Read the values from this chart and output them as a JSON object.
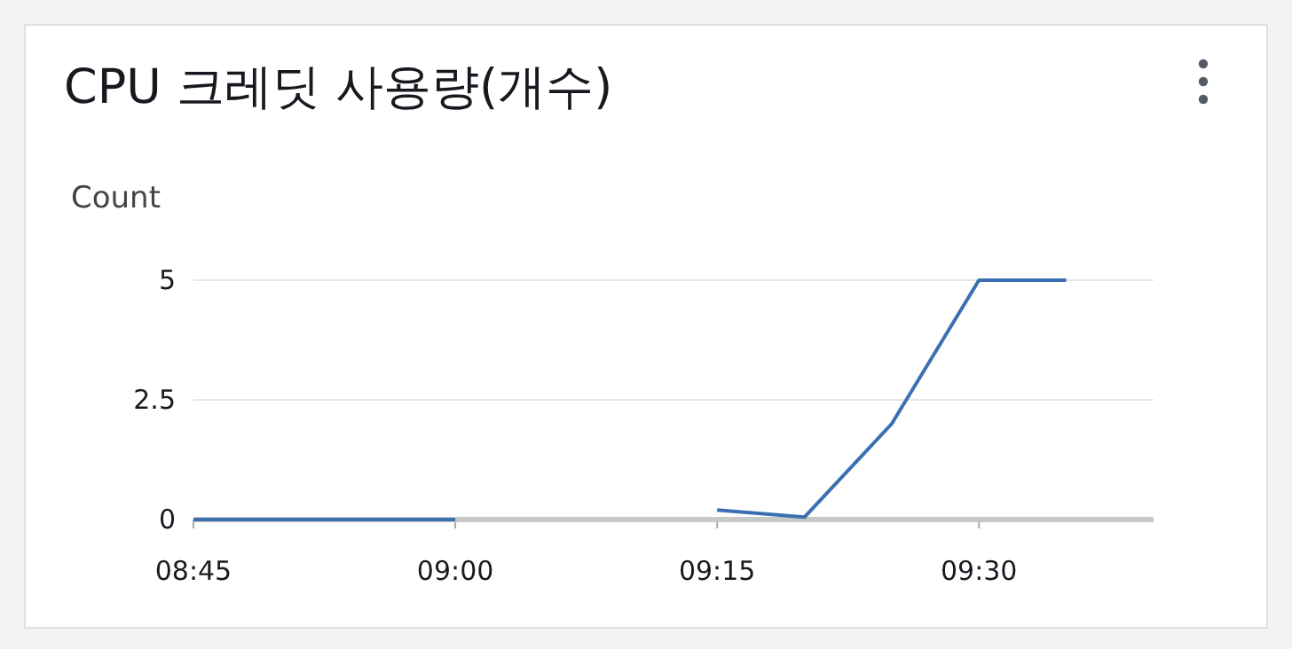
{
  "chart_data": {
    "type": "line",
    "title": "CPU 크레딧 사용량(개수)",
    "ylabel": "Count",
    "series": [
      {
        "color": "#3a70b0",
        "x": [
          8.75,
          8.8333,
          8.9167,
          9.0
        ],
        "values": [
          0,
          0,
          0,
          0
        ]
      },
      {
        "color": "#3a70b0",
        "x": [
          9.25,
          9.3333,
          9.4167,
          9.5,
          9.5833
        ],
        "values": [
          0.2,
          0.05,
          2,
          5,
          5
        ]
      }
    ],
    "xlim": [
      8.75,
      9.6667
    ],
    "xticks": [
      {
        "value": 8.75,
        "label": "08:45"
      },
      {
        "value": 9.0,
        "label": "09:00"
      },
      {
        "value": 9.25,
        "label": "09:15"
      },
      {
        "value": 9.5,
        "label": "09:30"
      }
    ],
    "ylim": [
      0,
      5
    ],
    "yticks": [
      0,
      2.5,
      5
    ],
    "grid": "y",
    "marker": "none",
    "line_style": "solid"
  }
}
